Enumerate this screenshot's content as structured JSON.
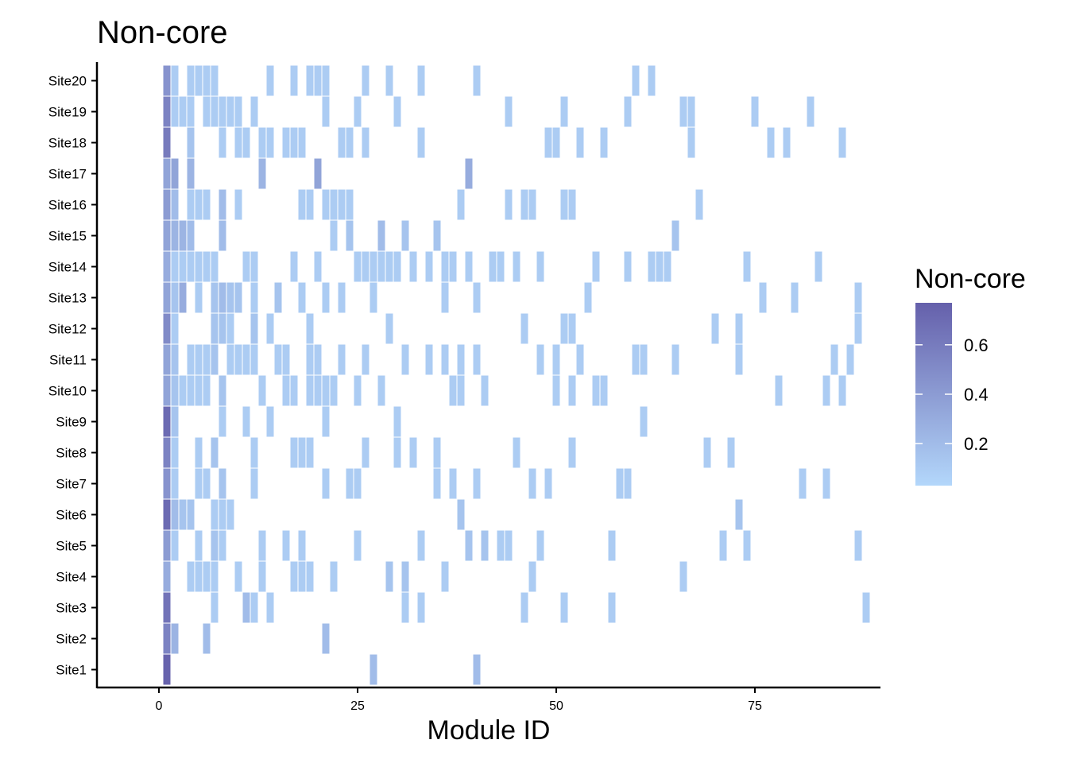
{
  "chart_data": {
    "type": "heatmap",
    "title": "Non-core",
    "xlabel": "Module ID",
    "ylabel": "",
    "xlim": [
      -7.8,
      90.8
    ],
    "x_ticks": [
      0,
      25,
      50,
      75
    ],
    "x_tick_labels": [
      "0",
      "25",
      "50",
      "75"
    ],
    "y_categories": [
      "Site1",
      "Site2",
      "Site3",
      "Site4",
      "Site5",
      "Site6",
      "Site7",
      "Site8",
      "Site9",
      "Site10",
      "Site11",
      "Site12",
      "Site13",
      "Site14",
      "Site15",
      "Site16",
      "Site17",
      "Site18",
      "Site19",
      "Site20"
    ],
    "legend": {
      "title": "Non-core",
      "ticks": [
        0.2,
        0.4,
        0.6
      ],
      "tick_labels": [
        "0.2",
        "0.4",
        "0.6"
      ],
      "range": [
        0.03,
        0.77
      ],
      "low_color": "#b3d7fb",
      "high_color": "#6560ab",
      "placement": "right"
    },
    "grid": false,
    "cells": {
      "Site20": [
        [
          1,
          0.45
        ],
        [
          2,
          0.1
        ],
        [
          4,
          0.1
        ],
        [
          5,
          0.1
        ],
        [
          6,
          0.1
        ],
        [
          7,
          0.1
        ],
        [
          14,
          0.1
        ],
        [
          17,
          0.1
        ],
        [
          19,
          0.1
        ],
        [
          20,
          0.1
        ],
        [
          21,
          0.1
        ],
        [
          26,
          0.1
        ],
        [
          29,
          0.1
        ],
        [
          33,
          0.1
        ],
        [
          40,
          0.1
        ],
        [
          60,
          0.1
        ],
        [
          62,
          0.1
        ]
      ],
      "Site19": [
        [
          1,
          0.55
        ],
        [
          2,
          0.1
        ],
        [
          3,
          0.1
        ],
        [
          4,
          0.1
        ],
        [
          6,
          0.1
        ],
        [
          7,
          0.1
        ],
        [
          8,
          0.1
        ],
        [
          9,
          0.1
        ],
        [
          10,
          0.1
        ],
        [
          12,
          0.1
        ],
        [
          21,
          0.1
        ],
        [
          25,
          0.1
        ],
        [
          30,
          0.1
        ],
        [
          44,
          0.1
        ],
        [
          51,
          0.1
        ],
        [
          59,
          0.1
        ],
        [
          66,
          0.1
        ],
        [
          67,
          0.1
        ],
        [
          75,
          0.1
        ],
        [
          82,
          0.1
        ]
      ],
      "Site18": [
        [
          1,
          0.6
        ],
        [
          4,
          0.15
        ],
        [
          8,
          0.1
        ],
        [
          10,
          0.1
        ],
        [
          11,
          0.1
        ],
        [
          13,
          0.1
        ],
        [
          14,
          0.1
        ],
        [
          16,
          0.1
        ],
        [
          17,
          0.1
        ],
        [
          18,
          0.1
        ],
        [
          23,
          0.1
        ],
        [
          24,
          0.1
        ],
        [
          26,
          0.1
        ],
        [
          33,
          0.1
        ],
        [
          49,
          0.1
        ],
        [
          50,
          0.1
        ],
        [
          53,
          0.1
        ],
        [
          56,
          0.1
        ],
        [
          67,
          0.1
        ],
        [
          77,
          0.1
        ],
        [
          79,
          0.1
        ],
        [
          86,
          0.1
        ]
      ],
      "Site17": [
        [
          1,
          0.35
        ],
        [
          2,
          0.35
        ],
        [
          4,
          0.25
        ],
        [
          13,
          0.25
        ],
        [
          20,
          0.35
        ],
        [
          39,
          0.3
        ]
      ],
      "Site16": [
        [
          1,
          0.4
        ],
        [
          2,
          0.2
        ],
        [
          4,
          0.1
        ],
        [
          5,
          0.1
        ],
        [
          6,
          0.1
        ],
        [
          8,
          0.2
        ],
        [
          10,
          0.1
        ],
        [
          18,
          0.1
        ],
        [
          19,
          0.1
        ],
        [
          21,
          0.1
        ],
        [
          22,
          0.1
        ],
        [
          23,
          0.1
        ],
        [
          24,
          0.1
        ],
        [
          38,
          0.1
        ],
        [
          44,
          0.1
        ],
        [
          46,
          0.1
        ],
        [
          47,
          0.1
        ],
        [
          51,
          0.1
        ],
        [
          52,
          0.1
        ],
        [
          68,
          0.1
        ]
      ],
      "Site15": [
        [
          1,
          0.35
        ],
        [
          2,
          0.25
        ],
        [
          3,
          0.25
        ],
        [
          4,
          0.2
        ],
        [
          8,
          0.2
        ],
        [
          22,
          0.1
        ],
        [
          24,
          0.15
        ],
        [
          28,
          0.2
        ],
        [
          31,
          0.15
        ],
        [
          35,
          0.15
        ],
        [
          65,
          0.15
        ]
      ],
      "Site14": [
        [
          1,
          0.3
        ],
        [
          2,
          0.1
        ],
        [
          3,
          0.1
        ],
        [
          4,
          0.1
        ],
        [
          5,
          0.1
        ],
        [
          6,
          0.1
        ],
        [
          7,
          0.1
        ],
        [
          11,
          0.1
        ],
        [
          12,
          0.1
        ],
        [
          17,
          0.1
        ],
        [
          20,
          0.1
        ],
        [
          25,
          0.1
        ],
        [
          26,
          0.1
        ],
        [
          27,
          0.1
        ],
        [
          28,
          0.1
        ],
        [
          29,
          0.1
        ],
        [
          30,
          0.1
        ],
        [
          32,
          0.1
        ],
        [
          34,
          0.1
        ],
        [
          36,
          0.1
        ],
        [
          37,
          0.1
        ],
        [
          39,
          0.1
        ],
        [
          42,
          0.1
        ],
        [
          43,
          0.1
        ],
        [
          45,
          0.1
        ],
        [
          48,
          0.1
        ],
        [
          55,
          0.1
        ],
        [
          59,
          0.1
        ],
        [
          62,
          0.1
        ],
        [
          63,
          0.1
        ],
        [
          64,
          0.1
        ],
        [
          74,
          0.1
        ],
        [
          83,
          0.1
        ]
      ],
      "Site13": [
        [
          1,
          0.35
        ],
        [
          2,
          0.15
        ],
        [
          3,
          0.3
        ],
        [
          5,
          0.1
        ],
        [
          7,
          0.15
        ],
        [
          8,
          0.2
        ],
        [
          9,
          0.15
        ],
        [
          10,
          0.15
        ],
        [
          12,
          0.1
        ],
        [
          15,
          0.15
        ],
        [
          18,
          0.1
        ],
        [
          21,
          0.1
        ],
        [
          23,
          0.1
        ],
        [
          27,
          0.1
        ],
        [
          36,
          0.1
        ],
        [
          40,
          0.1
        ],
        [
          54,
          0.1
        ],
        [
          76,
          0.1
        ],
        [
          80,
          0.1
        ],
        [
          88,
          0.1
        ]
      ],
      "Site12": [
        [
          1,
          0.5
        ],
        [
          2,
          0.1
        ],
        [
          7,
          0.15
        ],
        [
          8,
          0.15
        ],
        [
          9,
          0.1
        ],
        [
          12,
          0.15
        ],
        [
          14,
          0.1
        ],
        [
          19,
          0.1
        ],
        [
          29,
          0.1
        ],
        [
          46,
          0.1
        ],
        [
          51,
          0.1
        ],
        [
          52,
          0.1
        ],
        [
          70,
          0.1
        ],
        [
          73,
          0.1
        ],
        [
          88,
          0.1
        ]
      ],
      "Site11": [
        [
          1,
          0.35
        ],
        [
          2,
          0.15
        ],
        [
          4,
          0.1
        ],
        [
          5,
          0.1
        ],
        [
          6,
          0.1
        ],
        [
          7,
          0.15
        ],
        [
          9,
          0.1
        ],
        [
          10,
          0.1
        ],
        [
          11,
          0.1
        ],
        [
          12,
          0.1
        ],
        [
          15,
          0.1
        ],
        [
          16,
          0.1
        ],
        [
          19,
          0.1
        ],
        [
          20,
          0.1
        ],
        [
          23,
          0.1
        ],
        [
          26,
          0.1
        ],
        [
          31,
          0.1
        ],
        [
          34,
          0.1
        ],
        [
          36,
          0.1
        ],
        [
          38,
          0.1
        ],
        [
          40,
          0.1
        ],
        [
          48,
          0.1
        ],
        [
          50,
          0.1
        ],
        [
          53,
          0.1
        ],
        [
          60,
          0.1
        ],
        [
          61,
          0.1
        ],
        [
          65,
          0.1
        ],
        [
          73,
          0.1
        ],
        [
          85,
          0.1
        ],
        [
          87,
          0.1
        ]
      ],
      "Site10": [
        [
          1,
          0.35
        ],
        [
          2,
          0.15
        ],
        [
          3,
          0.1
        ],
        [
          4,
          0.1
        ],
        [
          5,
          0.1
        ],
        [
          6,
          0.1
        ],
        [
          8,
          0.15
        ],
        [
          13,
          0.1
        ],
        [
          16,
          0.1
        ],
        [
          17,
          0.1
        ],
        [
          19,
          0.1
        ],
        [
          20,
          0.1
        ],
        [
          21,
          0.1
        ],
        [
          22,
          0.1
        ],
        [
          25,
          0.1
        ],
        [
          28,
          0.1
        ],
        [
          37,
          0.1
        ],
        [
          38,
          0.1
        ],
        [
          41,
          0.1
        ],
        [
          50,
          0.1
        ],
        [
          52,
          0.1
        ],
        [
          55,
          0.1
        ],
        [
          56,
          0.1
        ],
        [
          78,
          0.1
        ],
        [
          84,
          0.1
        ],
        [
          86,
          0.1
        ]
      ],
      "Site9": [
        [
          1,
          0.7
        ],
        [
          2,
          0.15
        ],
        [
          8,
          0.1
        ],
        [
          11,
          0.1
        ],
        [
          14,
          0.1
        ],
        [
          21,
          0.1
        ],
        [
          30,
          0.1
        ],
        [
          61,
          0.1
        ]
      ],
      "Site8": [
        [
          1,
          0.55
        ],
        [
          2,
          0.1
        ],
        [
          5,
          0.1
        ],
        [
          7,
          0.15
        ],
        [
          12,
          0.1
        ],
        [
          17,
          0.1
        ],
        [
          18,
          0.1
        ],
        [
          19,
          0.1
        ],
        [
          26,
          0.1
        ],
        [
          30,
          0.1
        ],
        [
          32,
          0.1
        ],
        [
          35,
          0.1
        ],
        [
          45,
          0.1
        ],
        [
          52,
          0.1
        ],
        [
          69,
          0.1
        ],
        [
          72,
          0.1
        ]
      ],
      "Site7": [
        [
          1,
          0.45
        ],
        [
          2,
          0.1
        ],
        [
          5,
          0.1
        ],
        [
          6,
          0.1
        ],
        [
          8,
          0.15
        ],
        [
          12,
          0.1
        ],
        [
          21,
          0.1
        ],
        [
          24,
          0.1
        ],
        [
          25,
          0.1
        ],
        [
          35,
          0.1
        ],
        [
          37,
          0.1
        ],
        [
          40,
          0.1
        ],
        [
          47,
          0.1
        ],
        [
          49,
          0.1
        ],
        [
          58,
          0.1
        ],
        [
          59,
          0.1
        ],
        [
          81,
          0.1
        ],
        [
          84,
          0.1
        ]
      ],
      "Site6": [
        [
          1,
          0.7
        ],
        [
          2,
          0.2
        ],
        [
          3,
          0.15
        ],
        [
          4,
          0.15
        ],
        [
          7,
          0.1
        ],
        [
          8,
          0.1
        ],
        [
          9,
          0.1
        ],
        [
          38,
          0.15
        ],
        [
          73,
          0.15
        ]
      ],
      "Site5": [
        [
          1,
          0.4
        ],
        [
          2,
          0.1
        ],
        [
          5,
          0.1
        ],
        [
          7,
          0.15
        ],
        [
          8,
          0.1
        ],
        [
          13,
          0.1
        ],
        [
          16,
          0.1
        ],
        [
          18,
          0.1
        ],
        [
          25,
          0.1
        ],
        [
          33,
          0.1
        ],
        [
          39,
          0.15
        ],
        [
          41,
          0.15
        ],
        [
          43,
          0.1
        ],
        [
          44,
          0.1
        ],
        [
          48,
          0.1
        ],
        [
          57,
          0.1
        ],
        [
          71,
          0.1
        ],
        [
          74,
          0.1
        ],
        [
          88,
          0.1
        ]
      ],
      "Site4": [
        [
          1,
          0.3
        ],
        [
          4,
          0.1
        ],
        [
          5,
          0.1
        ],
        [
          6,
          0.1
        ],
        [
          7,
          0.1
        ],
        [
          10,
          0.1
        ],
        [
          13,
          0.1
        ],
        [
          17,
          0.1
        ],
        [
          18,
          0.1
        ],
        [
          19,
          0.1
        ],
        [
          22,
          0.1
        ],
        [
          29,
          0.15
        ],
        [
          31,
          0.15
        ],
        [
          36,
          0.1
        ],
        [
          47,
          0.1
        ],
        [
          66,
          0.1
        ]
      ],
      "Site3": [
        [
          1,
          0.65
        ],
        [
          7,
          0.1
        ],
        [
          11,
          0.2
        ],
        [
          12,
          0.1
        ],
        [
          14,
          0.1
        ],
        [
          31,
          0.1
        ],
        [
          33,
          0.1
        ],
        [
          46,
          0.1
        ],
        [
          51,
          0.1
        ],
        [
          57,
          0.1
        ],
        [
          89,
          0.1
        ]
      ],
      "Site2": [
        [
          1,
          0.55
        ],
        [
          2,
          0.25
        ],
        [
          6,
          0.2
        ],
        [
          21,
          0.2
        ]
      ],
      "Site1": [
        [
          1,
          0.75
        ],
        [
          27,
          0.2
        ],
        [
          40,
          0.2
        ]
      ]
    }
  }
}
